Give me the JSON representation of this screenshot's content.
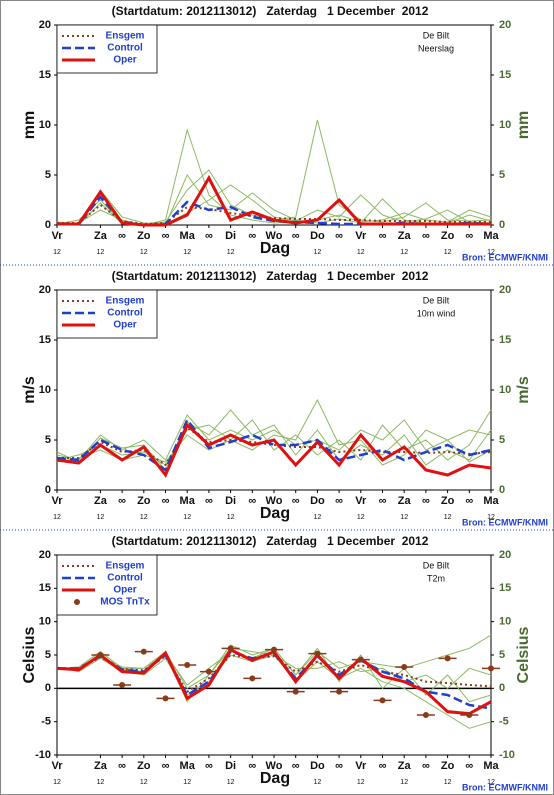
{
  "chart_data": [
    {
      "type": "line",
      "title": "(Startdatum: 2012113012)   Zaterdag   1 December  2012",
      "station": "De Bilt",
      "parameter": "Neerslag",
      "ylabel": "mm",
      "xlabel": "Dag",
      "source": "Bron: ECMWF/KNMI",
      "legend": "upper left",
      "zero_line": false,
      "xlim": [
        0,
        240
      ],
      "ylim": [
        0,
        20
      ],
      "yticks": [
        0,
        5,
        10,
        15,
        20
      ],
      "xticks": [
        {
          "value": 0,
          "label": "Vr"
        },
        {
          "value": 24,
          "label": "Za"
        },
        {
          "value": 36,
          "label": "∞"
        },
        {
          "value": 48,
          "label": "Zo"
        },
        {
          "value": 60,
          "label": "∞"
        },
        {
          "value": 72,
          "label": "Ma"
        },
        {
          "value": 84,
          "label": "∞"
        },
        {
          "value": 96,
          "label": "Di"
        },
        {
          "value": 108,
          "label": "∞"
        },
        {
          "value": 120,
          "label": "Wo"
        },
        {
          "value": 132,
          "label": "∞"
        },
        {
          "value": 144,
          "label": "Do"
        },
        {
          "value": 156,
          "label": "∞"
        },
        {
          "value": 168,
          "label": "Vr"
        },
        {
          "value": 180,
          "label": "∞"
        },
        {
          "value": 192,
          "label": "Za"
        },
        {
          "value": 204,
          "label": "∞"
        },
        {
          "value": 216,
          "label": "Zo"
        },
        {
          "value": 228,
          "label": "∞"
        },
        {
          "value": 240,
          "label": "Ma"
        }
      ],
      "xsublabels": [
        {
          "value": 0,
          "label": "12"
        },
        {
          "value": 24,
          "label": "12"
        },
        {
          "value": 48,
          "label": "12"
        },
        {
          "value": 72,
          "label": "12"
        },
        {
          "value": 96,
          "label": "12"
        },
        {
          "value": 144,
          "label": "12"
        },
        {
          "value": 168,
          "label": "12"
        },
        {
          "value": 192,
          "label": "12"
        },
        {
          "value": 216,
          "label": "12"
        },
        {
          "value": 240,
          "label": "12"
        }
      ],
      "x": [
        0,
        12,
        24,
        36,
        48,
        60,
        72,
        84,
        96,
        108,
        120,
        132,
        144,
        156,
        168,
        180,
        192,
        204,
        216,
        228,
        240
      ],
      "members": {
        "color": "#8cba63",
        "values": [
          [
            0,
            0.2,
            1.5,
            0.5,
            0,
            0.5,
            9.5,
            3,
            1,
            0.5,
            0.2,
            0.3,
            0.5,
            1,
            0.3,
            0.5,
            1.2,
            0.5,
            0.3,
            1.5,
            0.8
          ],
          [
            0.1,
            0.5,
            2.5,
            0.2,
            0.1,
            0.3,
            3.5,
            5.5,
            2,
            1,
            0.5,
            0.8,
            10.5,
            2,
            0.5,
            0.3,
            0.8,
            2.2,
            0.5,
            0.4,
            0.5
          ],
          [
            0.3,
            0.1,
            3.5,
            0.8,
            0.2,
            0.1,
            1.2,
            2.5,
            4,
            2.5,
            0.8,
            0.4,
            1.5,
            0.8,
            3,
            1,
            0.3,
            0.6,
            1.5,
            0.3,
            0.2
          ],
          [
            0,
            0,
            2.2,
            0.1,
            0,
            0,
            5,
            2,
            1.5,
            3.2,
            1.5,
            0.5,
            0.2,
            0.6,
            0.2,
            2.6,
            0.5,
            0.2,
            0.2,
            1,
            0.4
          ]
        ]
      },
      "series": [
        {
          "name": "Ensgem",
          "color": "#8b3a1a",
          "style": "dotted",
          "values": [
            0.2,
            0.2,
            2.0,
            0.4,
            0.1,
            0.2,
            1.8,
            1.6,
            1.2,
            0.9,
            0.7,
            0.6,
            0.6,
            0.5,
            0.5,
            0.4,
            0.4,
            0.4,
            0.3,
            0.3,
            0.3
          ]
        },
        {
          "name": "Control",
          "color": "#1f3fd0",
          "style": "dashed",
          "values": [
            0.1,
            0.1,
            2.8,
            0.3,
            0,
            0.1,
            2.3,
            1.5,
            1.8,
            0.8,
            0.4,
            0.3,
            0.2,
            0.1,
            0.1,
            0.1,
            0.2,
            0.1,
            0.1,
            0.2,
            0.1
          ]
        },
        {
          "name": "Oper",
          "color": "#e01010",
          "style": "solid",
          "values": [
            0.1,
            0.1,
            3.3,
            0.2,
            0,
            0,
            1.0,
            4.7,
            0.5,
            1.3,
            0.5,
            0.2,
            0.5,
            2.5,
            0.1,
            0.1,
            0.1,
            0.1,
            0.1,
            0.1,
            0.1
          ]
        }
      ]
    },
    {
      "type": "line",
      "title": "(Startdatum: 2012113012)   Zaterdag   1 December  2012",
      "station": "De Bilt",
      "parameter": "10m wind",
      "ylabel": "m/s",
      "xlabel": "Dag",
      "source": "Bron: ECMWF/KNMI",
      "legend": "upper left",
      "zero_line": false,
      "xlim": [
        0,
        240
      ],
      "ylim": [
        0,
        20
      ],
      "yticks": [
        0,
        5,
        10,
        15,
        20
      ],
      "xticks": [
        {
          "value": 0,
          "label": "Vr"
        },
        {
          "value": 24,
          "label": "Za"
        },
        {
          "value": 36,
          "label": "∞"
        },
        {
          "value": 48,
          "label": "Zo"
        },
        {
          "value": 60,
          "label": "∞"
        },
        {
          "value": 72,
          "label": "Ma"
        },
        {
          "value": 84,
          "label": "∞"
        },
        {
          "value": 96,
          "label": "Di"
        },
        {
          "value": 108,
          "label": "∞"
        },
        {
          "value": 120,
          "label": "Wo"
        },
        {
          "value": 132,
          "label": "∞"
        },
        {
          "value": 144,
          "label": "Do"
        },
        {
          "value": 156,
          "label": "∞"
        },
        {
          "value": 168,
          "label": "Vr"
        },
        {
          "value": 180,
          "label": "∞"
        },
        {
          "value": 192,
          "label": "Za"
        },
        {
          "value": 204,
          "label": "∞"
        },
        {
          "value": 216,
          "label": "Zo"
        },
        {
          "value": 228,
          "label": "∞"
        },
        {
          "value": 240,
          "label": "Ma"
        }
      ],
      "xsublabels": [
        {
          "value": 0,
          "label": "12"
        },
        {
          "value": 24,
          "label": "12"
        },
        {
          "value": 48,
          "label": "12"
        },
        {
          "value": 72,
          "label": "12"
        },
        {
          "value": 96,
          "label": "12"
        },
        {
          "value": 144,
          "label": "12"
        },
        {
          "value": 168,
          "label": "12"
        },
        {
          "value": 192,
          "label": "12"
        },
        {
          "value": 216,
          "label": "12"
        },
        {
          "value": 240,
          "label": "12"
        }
      ],
      "x": [
        0,
        12,
        24,
        36,
        48,
        60,
        72,
        84,
        96,
        108,
        120,
        132,
        144,
        156,
        168,
        180,
        192,
        204,
        216,
        228,
        240
      ],
      "members": {
        "color": "#8cba63",
        "values": [
          [
            3.5,
            3,
            5.5,
            4,
            5,
            3,
            7.5,
            5,
            6,
            5,
            6,
            4.5,
            5,
            4,
            6,
            5,
            7,
            4,
            5,
            6,
            5.5
          ],
          [
            3,
            3.5,
            4.5,
            3.5,
            3.8,
            2.5,
            6,
            6.5,
            5,
            7,
            4,
            5.5,
            3.5,
            5,
            3,
            6.5,
            4,
            5,
            3,
            4.5,
            8
          ],
          [
            3.8,
            2.8,
            5.2,
            4.2,
            4.5,
            2,
            6.8,
            5.5,
            8,
            5.5,
            6.5,
            3.5,
            6,
            3,
            4.5,
            3.5,
            5.5,
            2.5,
            4,
            3,
            6
          ],
          [
            2.8,
            3.2,
            4,
            3,
            3.5,
            2.8,
            5.5,
            4,
            5,
            4,
            5.5,
            5,
            9,
            4.5,
            5,
            2.5,
            3.5,
            6,
            5,
            2.8,
            4
          ]
        ]
      },
      "series": [
        {
          "name": "Ensgem",
          "color": "#8b3a1a",
          "style": "dotted",
          "values": [
            3.2,
            3.2,
            4.8,
            3.8,
            4.0,
            2.5,
            6.2,
            4.8,
            5.0,
            4.8,
            4.5,
            4.3,
            4.3,
            3.8,
            4.0,
            3.8,
            3.8,
            3.7,
            3.8,
            3.6,
            3.8
          ]
        },
        {
          "name": "Control",
          "color": "#1f3fd0",
          "style": "dashed",
          "values": [
            3.2,
            3.0,
            5.0,
            4.0,
            3.5,
            2.0,
            7.0,
            4.2,
            4.8,
            5.5,
            4.5,
            4.5,
            5.0,
            3.0,
            3.5,
            4.0,
            3.0,
            3.8,
            4.5,
            3.5,
            4.0
          ]
        },
        {
          "name": "Oper",
          "color": "#e01010",
          "style": "solid",
          "values": [
            3.0,
            2.7,
            4.5,
            3.0,
            4.3,
            1.5,
            6.5,
            4.5,
            5.5,
            4.5,
            5.0,
            2.5,
            4.8,
            2.5,
            5.5,
            3.0,
            4.3,
            2.0,
            1.5,
            2.5,
            2.2
          ]
        }
      ]
    },
    {
      "type": "line",
      "title": "(Startdatum: 2012113012)   Zaterdag   1 December  2012",
      "station": "De Bilt",
      "parameter": "T2m",
      "ylabel": "Celsius",
      "xlabel": "Dag",
      "source": "Bron: ECMWF/KNMI",
      "legend": "upper left",
      "zero_line": true,
      "xlim": [
        0,
        240
      ],
      "ylim": [
        -10,
        20
      ],
      "yticks": [
        -10,
        -5,
        0,
        5,
        10,
        15,
        20
      ],
      "xticks": [
        {
          "value": 0,
          "label": "Vr"
        },
        {
          "value": 24,
          "label": "Za"
        },
        {
          "value": 36,
          "label": "∞"
        },
        {
          "value": 48,
          "label": "Zo"
        },
        {
          "value": 60,
          "label": "∞"
        },
        {
          "value": 72,
          "label": "Ma"
        },
        {
          "value": 84,
          "label": "∞"
        },
        {
          "value": 96,
          "label": "Di"
        },
        {
          "value": 108,
          "label": "∞"
        },
        {
          "value": 120,
          "label": "Wo"
        },
        {
          "value": 132,
          "label": "∞"
        },
        {
          "value": 144,
          "label": "Do"
        },
        {
          "value": 156,
          "label": "∞"
        },
        {
          "value": 168,
          "label": "Vr"
        },
        {
          "value": 180,
          "label": "∞"
        },
        {
          "value": 192,
          "label": "Za"
        },
        {
          "value": 204,
          "label": "∞"
        },
        {
          "value": 216,
          "label": "Zo"
        },
        {
          "value": 228,
          "label": "∞"
        },
        {
          "value": 240,
          "label": "Ma"
        }
      ],
      "xsublabels": [
        {
          "value": 0,
          "label": "12"
        },
        {
          "value": 24,
          "label": "12"
        },
        {
          "value": 48,
          "label": "12"
        },
        {
          "value": 72,
          "label": "12"
        },
        {
          "value": 96,
          "label": "12"
        },
        {
          "value": 144,
          "label": "12"
        },
        {
          "value": 168,
          "label": "12"
        },
        {
          "value": 192,
          "label": "12"
        },
        {
          "value": 216,
          "label": "12"
        },
        {
          "value": 240,
          "label": "12"
        }
      ],
      "x": [
        0,
        12,
        24,
        36,
        48,
        60,
        72,
        84,
        96,
        108,
        120,
        132,
        144,
        156,
        168,
        180,
        192,
        204,
        216,
        228,
        240
      ],
      "members": {
        "color": "#8cba63",
        "values": [
          [
            3,
            3.2,
            5.5,
            3,
            3,
            5.5,
            0,
            2,
            6.5,
            5,
            6,
            2,
            5.5,
            3,
            4,
            3.5,
            3,
            4,
            5,
            6,
            8
          ],
          [
            3.2,
            2.5,
            4.5,
            2.5,
            2,
            4.5,
            -1,
            1,
            5,
            4,
            5,
            1,
            4,
            1.5,
            3,
            1,
            0,
            -2,
            -4,
            -6,
            -5
          ],
          [
            2.8,
            3,
            4.8,
            3.2,
            3,
            5,
            -2,
            2,
            6,
            5.5,
            5,
            3,
            3,
            4,
            2.5,
            3,
            1,
            2,
            0,
            3,
            2
          ],
          [
            3,
            2.8,
            5,
            2.8,
            2.5,
            5.2,
            0.5,
            3,
            5.5,
            4.5,
            6,
            2,
            6,
            1,
            5,
            0,
            3,
            -1,
            2,
            -2,
            -1
          ]
        ]
      },
      "series": [
        {
          "name": "Ensgem",
          "color": "#8b3a1a",
          "style": "dotted",
          "values": [
            3.0,
            2.9,
            4.7,
            2.9,
            2.7,
            4.8,
            -0.5,
            1.5,
            5.0,
            4.5,
            4.8,
            2.5,
            4.0,
            2.5,
            3.5,
            2.5,
            2.0,
            1.0,
            0.8,
            0.5,
            0.3
          ]
        },
        {
          "name": "Control",
          "color": "#1f3fd0",
          "style": "dashed",
          "values": [
            3.0,
            3.0,
            4.8,
            2.8,
            2.5,
            5.0,
            -1.0,
            1.0,
            5.5,
            4.5,
            5.2,
            1.5,
            4.8,
            2.0,
            4.2,
            2.5,
            1.5,
            -0.5,
            -1.0,
            -2.5,
            -3.0
          ]
        },
        {
          "name": "Oper",
          "color": "#e01010",
          "style": "solid",
          "values": [
            3.0,
            2.8,
            5.0,
            2.5,
            2.3,
            5.3,
            -1.5,
            0.5,
            5.8,
            4.2,
            5.5,
            1.0,
            5.0,
            1.5,
            4.5,
            1.8,
            1.0,
            -0.5,
            -3.5,
            -3.8,
            -2.0
          ]
        },
        {
          "name": "MOS TnTx",
          "color": "#8b3a1a",
          "style": "dots",
          "x": [
            24,
            36,
            48,
            60,
            72,
            84,
            96,
            108,
            120,
            132,
            144,
            156,
            168,
            180,
            192,
            204,
            216,
            228,
            240
          ],
          "values": [
            5.0,
            0.5,
            5.5,
            -1.5,
            3.5,
            2.5,
            6.0,
            1.5,
            5.8,
            -0.5,
            5.2,
            -0.5,
            4.3,
            -1.8,
            3.2,
            -4.0,
            4.5,
            -4.0,
            3.0
          ]
        }
      ]
    }
  ]
}
